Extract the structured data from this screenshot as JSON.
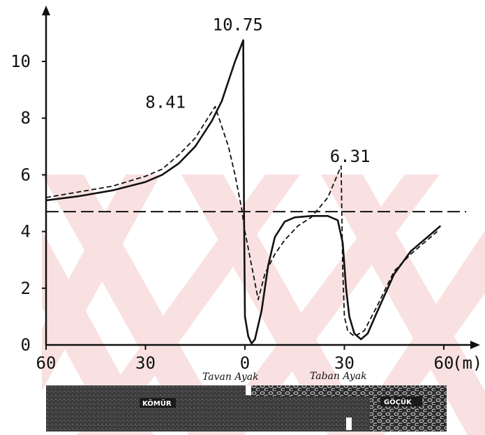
{
  "chart_data": {
    "type": "line",
    "x_ticks": [
      "60",
      "30",
      "0",
      "30",
      "60"
    ],
    "x_unit": "(m)",
    "y_ticks": [
      "0",
      "2",
      "4",
      "6",
      "8",
      "10"
    ],
    "xlim": [
      -60,
      60
    ],
    "ylim": [
      0,
      11.5
    ],
    "reference_line": {
      "y": 4.7,
      "style": "long-dash"
    },
    "series": [
      {
        "style": "solid",
        "points": [
          [
            -60,
            5.1
          ],
          [
            -50,
            5.25
          ],
          [
            -40,
            5.45
          ],
          [
            -30,
            5.75
          ],
          [
            -25,
            6.0
          ],
          [
            -20,
            6.4
          ],
          [
            -15,
            7.0
          ],
          [
            -10,
            7.9
          ],
          [
            -7,
            8.6
          ],
          [
            -5,
            9.3
          ],
          [
            -3,
            10.0
          ],
          [
            -1,
            10.6
          ],
          [
            -0.5,
            10.75
          ],
          [
            -0.3,
            5.0
          ],
          [
            0,
            1.0
          ],
          [
            1,
            0.3
          ],
          [
            2,
            0.05
          ],
          [
            3,
            0.2
          ],
          [
            5,
            1.2
          ],
          [
            7,
            2.8
          ],
          [
            9,
            3.8
          ],
          [
            12,
            4.35
          ],
          [
            15,
            4.5
          ],
          [
            20,
            4.55
          ],
          [
            25,
            4.55
          ],
          [
            28,
            4.4
          ],
          [
            29.5,
            3.6
          ],
          [
            30.5,
            2.0
          ],
          [
            31.5,
            1.0
          ],
          [
            33,
            0.4
          ],
          [
            35,
            0.2
          ],
          [
            37,
            0.4
          ],
          [
            40,
            1.2
          ],
          [
            45,
            2.5
          ],
          [
            50,
            3.3
          ],
          [
            55,
            3.8
          ],
          [
            59,
            4.2
          ]
        ]
      },
      {
        "style": "dashed",
        "points": [
          [
            -60,
            5.2
          ],
          [
            -50,
            5.4
          ],
          [
            -40,
            5.6
          ],
          [
            -30,
            5.95
          ],
          [
            -25,
            6.2
          ],
          [
            -20,
            6.7
          ],
          [
            -15,
            7.3
          ],
          [
            -12,
            7.85
          ],
          [
            -9,
            8.41
          ],
          [
            -5,
            7.0
          ],
          [
            -3,
            6.0
          ],
          [
            -1,
            4.8
          ],
          [
            0,
            4.0
          ],
          [
            1,
            3.4
          ],
          [
            2,
            2.8
          ],
          [
            4,
            1.6
          ],
          [
            6,
            2.5
          ],
          [
            9,
            3.2
          ],
          [
            12,
            3.7
          ],
          [
            16,
            4.2
          ],
          [
            20,
            4.5
          ],
          [
            25,
            5.2
          ],
          [
            29,
            6.31
          ],
          [
            29.5,
            2.7
          ],
          [
            30,
            1.0
          ],
          [
            31,
            0.5
          ],
          [
            33,
            0.3
          ],
          [
            36,
            0.5
          ],
          [
            40,
            1.4
          ],
          [
            45,
            2.6
          ],
          [
            50,
            3.2
          ],
          [
            55,
            3.7
          ],
          [
            58,
            4.0
          ]
        ]
      }
    ],
    "annotations": [
      {
        "text": "10.75",
        "x": -0.5,
        "y": 10.75
      },
      {
        "text": "8.41",
        "x": -9,
        "y": 8.41
      },
      {
        "text": "6.31",
        "x": 29,
        "y": 6.31
      }
    ]
  },
  "strata": {
    "left_label": "Tavan Ayak",
    "right_label": "Taban Ayak",
    "coal_label": "KÖMÜR",
    "goaf_label": "GÖÇÜK"
  }
}
